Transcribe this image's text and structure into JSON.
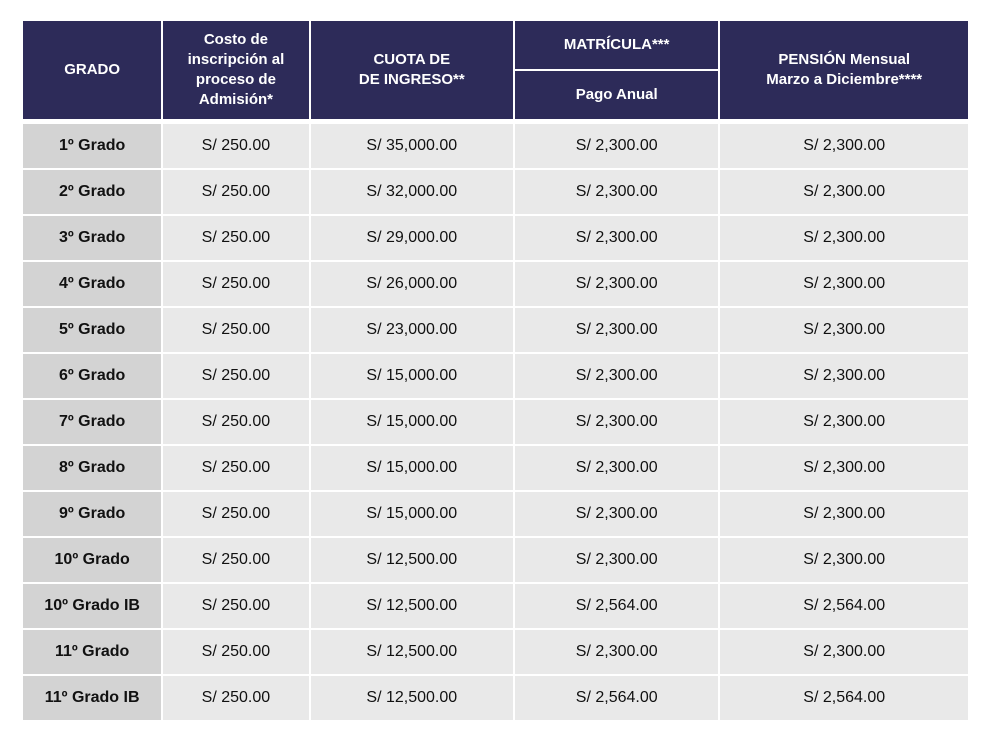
{
  "header": {
    "grado": "GRADO",
    "costo_inscripcion": [
      "Costo de",
      "inscripción al",
      "proceso de",
      "Admisión*"
    ],
    "cuota_ingreso": [
      "CUOTA DE",
      "DE INGRESO**"
    ],
    "matricula": "MATRÍCULA***",
    "pago_anual": "Pago Anual",
    "pension": [
      "PENSIÓN Mensual",
      "Marzo a Diciembre****"
    ]
  },
  "rows": [
    {
      "grado": "1º Grado",
      "inscripcion": "S/ 250.00",
      "cuota": "S/ 35,000.00",
      "matricula": "S/ 2,300.00",
      "pension": "S/ 2,300.00"
    },
    {
      "grado": "2º Grado",
      "inscripcion": "S/ 250.00",
      "cuota": "S/ 32,000.00",
      "matricula": "S/ 2,300.00",
      "pension": "S/ 2,300.00"
    },
    {
      "grado": "3º Grado",
      "inscripcion": "S/ 250.00",
      "cuota": "S/ 29,000.00",
      "matricula": "S/ 2,300.00",
      "pension": "S/ 2,300.00"
    },
    {
      "grado": "4º Grado",
      "inscripcion": "S/ 250.00",
      "cuota": "S/ 26,000.00",
      "matricula": "S/ 2,300.00",
      "pension": "S/ 2,300.00"
    },
    {
      "grado": "5º Grado",
      "inscripcion": "S/ 250.00",
      "cuota": "S/ 23,000.00",
      "matricula": "S/ 2,300.00",
      "pension": "S/ 2,300.00"
    },
    {
      "grado": "6º Grado",
      "inscripcion": "S/ 250.00",
      "cuota": "S/ 15,000.00",
      "matricula": "S/ 2,300.00",
      "pension": "S/ 2,300.00"
    },
    {
      "grado": "7º Grado",
      "inscripcion": "S/ 250.00",
      "cuota": "S/ 15,000.00",
      "matricula": "S/ 2,300.00",
      "pension": "S/ 2,300.00"
    },
    {
      "grado": "8º Grado",
      "inscripcion": "S/ 250.00",
      "cuota": "S/ 15,000.00",
      "matricula": "S/ 2,300.00",
      "pension": "S/ 2,300.00"
    },
    {
      "grado": "9º Grado",
      "inscripcion": "S/ 250.00",
      "cuota": "S/ 15,000.00",
      "matricula": "S/ 2,300.00",
      "pension": "S/ 2,300.00"
    },
    {
      "grado": "10º Grado",
      "inscripcion": "S/ 250.00",
      "cuota": "S/ 12,500.00",
      "matricula": "S/ 2,300.00",
      "pension": "S/ 2,300.00"
    },
    {
      "grado": "10º Grado IB",
      "inscripcion": "S/ 250.00",
      "cuota": "S/ 12,500.00",
      "matricula": "S/ 2,564.00",
      "pension": "S/ 2,564.00"
    },
    {
      "grado": "11º Grado",
      "inscripcion": "S/ 250.00",
      "cuota": "S/ 12,500.00",
      "matricula": "S/ 2,300.00",
      "pension": "S/ 2,300.00"
    },
    {
      "grado": "11º Grado IB",
      "inscripcion": "S/ 250.00",
      "cuota": "S/ 12,500.00",
      "matricula": "S/ 2,564.00",
      "pension": "S/ 2,564.00"
    }
  ],
  "colors": {
    "header_bg": "#2d2b59",
    "header_text": "#ffffff",
    "grade_cell_bg": "#d3d3d3",
    "value_cell_bg": "#e9e9e9"
  }
}
